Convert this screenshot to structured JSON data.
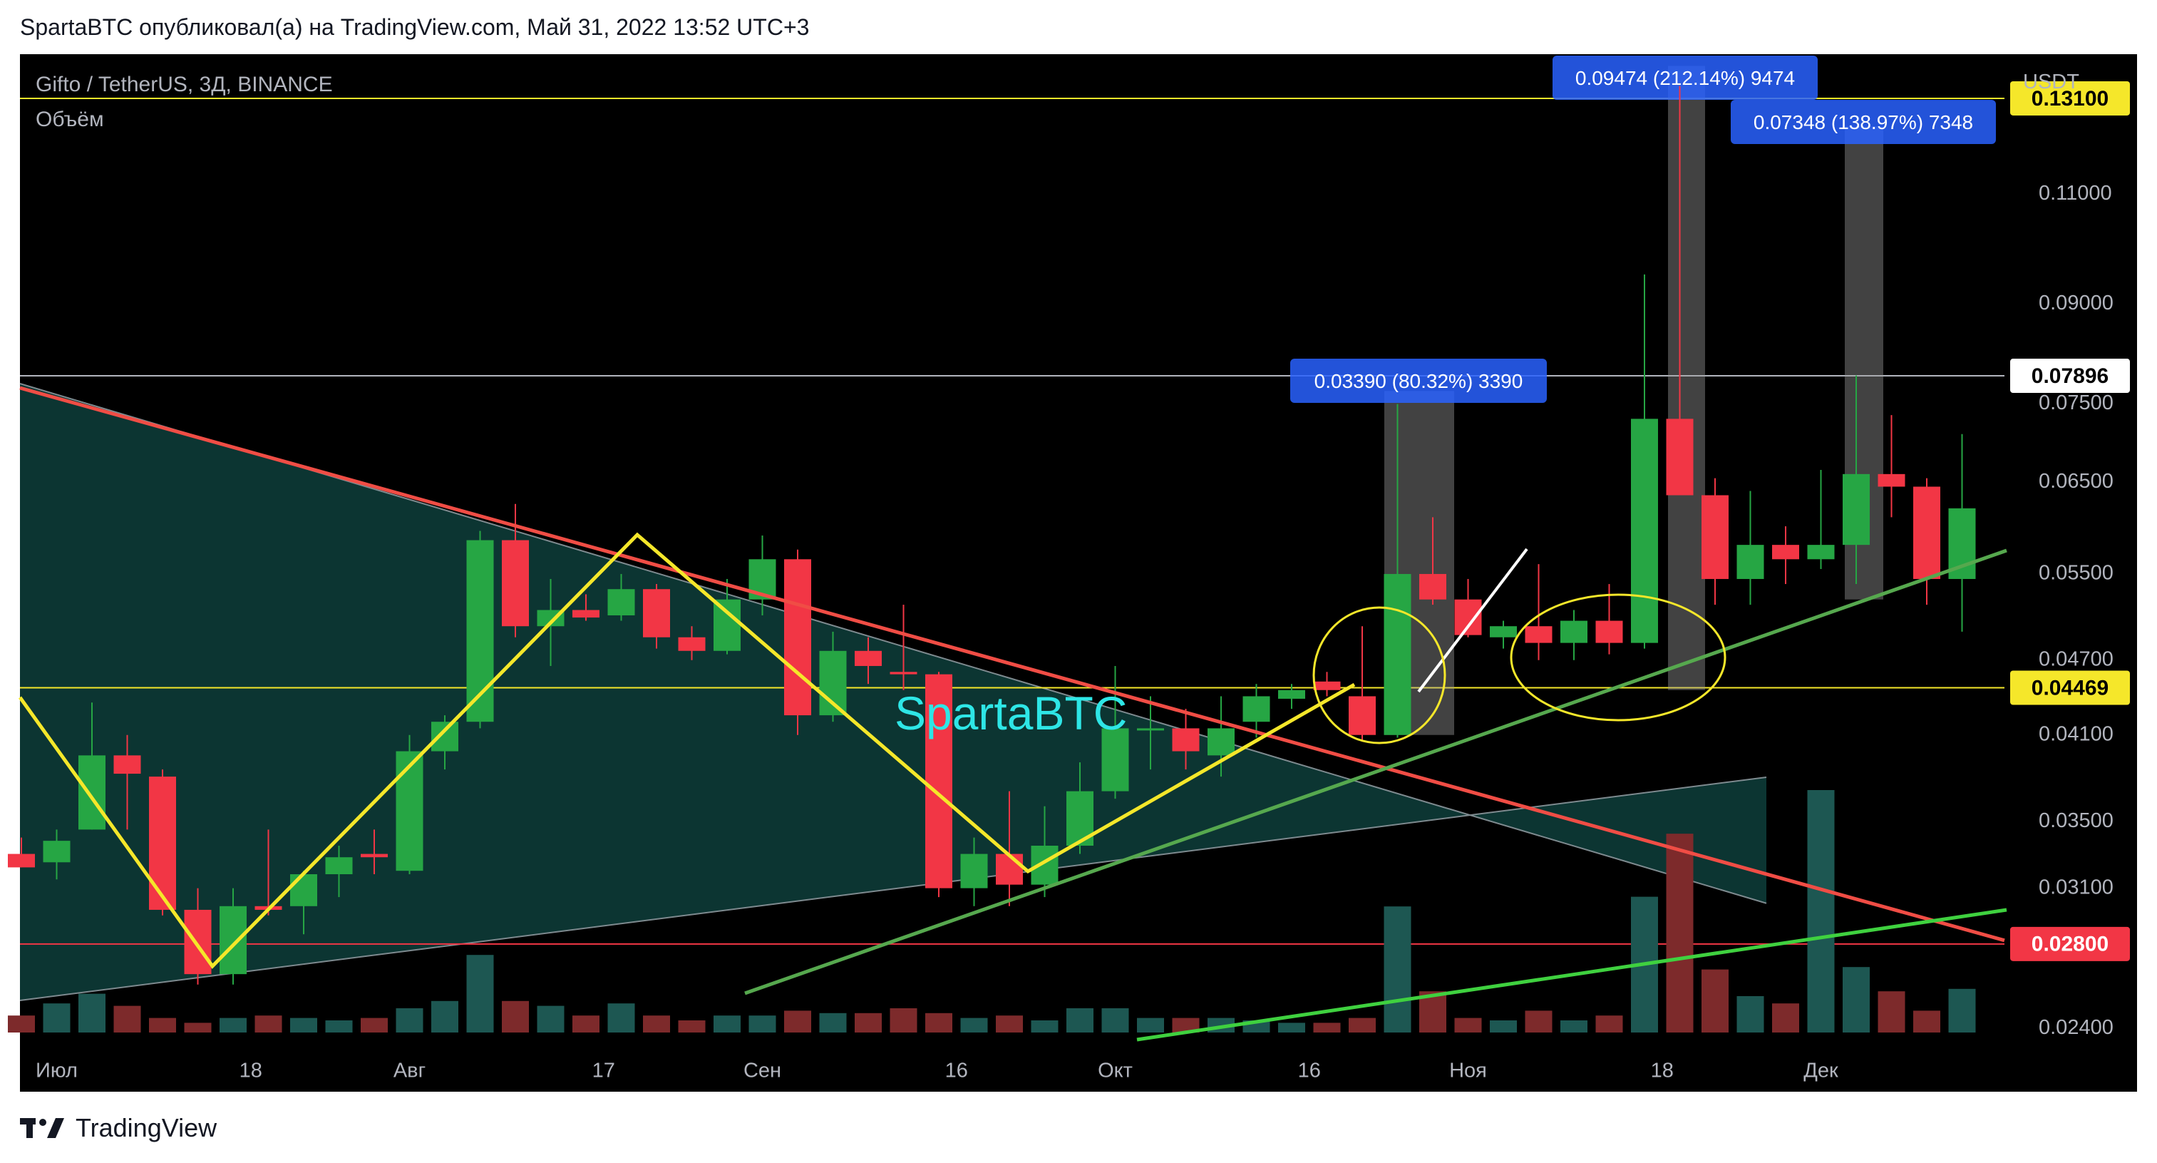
{
  "header": {
    "text": "SpartaBTC опубликовал(а) на TradingView.com, Май 31, 2022 13:52 UTC+3"
  },
  "footer": {
    "brand": "TradingView"
  },
  "legend": {
    "symbol": "Gifto / TetherUS, 3Д, BINANCE",
    "volume_label": "Объём"
  },
  "watermark": "SpartaBTC",
  "colors": {
    "background": "#000000",
    "bull": "#26a644",
    "bear": "#f23645",
    "vol_bull": "#1d5752",
    "vol_bear": "#7d2a2b",
    "triangle_fill": "#0d3b37",
    "yellow": "#f5e72a",
    "red_line": "#f04d45",
    "green_line": "#4caf50",
    "measure_blue": "#2962ff"
  },
  "chart_data": {
    "type": "candlestick",
    "currency": "USDT",
    "ylim": [
      0.023,
      0.142
    ],
    "x_ticks": [
      "Июл",
      "18",
      "Авг",
      "17",
      "Сен",
      "16",
      "Окт",
      "16",
      "Ноя",
      "18",
      "Дек"
    ],
    "x_tick_positions": [
      1.0,
      6.5,
      11.0,
      16.5,
      21.0,
      26.5,
      31.0,
      36.5,
      41.0,
      46.5,
      51.0
    ],
    "y_ticks": [
      0.024,
      0.031,
      0.035,
      0.041,
      0.047,
      0.055,
      0.065,
      0.075,
      0.09,
      0.11
    ],
    "y_tick_labels": [
      "0.02400",
      "0.03100",
      "0.03500",
      "0.04100",
      "0.04700",
      "0.05500",
      "0.06500",
      "0.07500",
      "0.09000",
      "0.11000"
    ],
    "price_tags": [
      {
        "label": "0.13100",
        "value": 0.131,
        "bg": "#f5e72a",
        "fg": "#000000"
      },
      {
        "label": "0.07896",
        "value": 0.07896,
        "bg": "#ffffff",
        "fg": "#000000"
      },
      {
        "label": "0.04469",
        "value": 0.04469,
        "bg": "#f5e72a",
        "fg": "#000000"
      },
      {
        "label": "0.02800",
        "value": 0.028,
        "bg": "#f23645",
        "fg": "#ffffff"
      }
    ],
    "measure_labels": [
      "0.03390 (80.32%) 3390",
      "0.09474 (212.14%) 9474",
      "0.07348 (138.97%) 7348"
    ],
    "candles": [
      {
        "o": 0.033,
        "h": 0.034,
        "l": 0.0322,
        "c": 0.0322
      },
      {
        "o": 0.0325,
        "h": 0.0345,
        "l": 0.0315,
        "c": 0.0338
      },
      {
        "o": 0.0345,
        "h": 0.0435,
        "l": 0.0345,
        "c": 0.0395
      },
      {
        "o": 0.0395,
        "h": 0.041,
        "l": 0.0345,
        "c": 0.0382
      },
      {
        "o": 0.038,
        "h": 0.0385,
        "l": 0.0295,
        "c": 0.0298
      },
      {
        "o": 0.0298,
        "h": 0.031,
        "l": 0.026,
        "c": 0.0265
      },
      {
        "o": 0.0265,
        "h": 0.031,
        "l": 0.026,
        "c": 0.03
      },
      {
        "o": 0.03,
        "h": 0.0345,
        "l": 0.0295,
        "c": 0.0298
      },
      {
        "o": 0.03,
        "h": 0.032,
        "l": 0.0285,
        "c": 0.0318
      },
      {
        "o": 0.0318,
        "h": 0.0335,
        "l": 0.0305,
        "c": 0.0328
      },
      {
        "o": 0.033,
        "h": 0.0345,
        "l": 0.0318,
        "c": 0.0328
      },
      {
        "o": 0.032,
        "h": 0.041,
        "l": 0.0318,
        "c": 0.0398
      },
      {
        "o": 0.0398,
        "h": 0.0425,
        "l": 0.0385,
        "c": 0.042
      },
      {
        "o": 0.042,
        "h": 0.0595,
        "l": 0.0415,
        "c": 0.0585
      },
      {
        "o": 0.0585,
        "h": 0.0625,
        "l": 0.049,
        "c": 0.05
      },
      {
        "o": 0.05,
        "h": 0.0545,
        "l": 0.0465,
        "c": 0.0515
      },
      {
        "o": 0.0515,
        "h": 0.053,
        "l": 0.0505,
        "c": 0.0508
      },
      {
        "o": 0.051,
        "h": 0.055,
        "l": 0.0505,
        "c": 0.0535
      },
      {
        "o": 0.0535,
        "h": 0.054,
        "l": 0.048,
        "c": 0.049
      },
      {
        "o": 0.049,
        "h": 0.05,
        "l": 0.047,
        "c": 0.0478
      },
      {
        "o": 0.0478,
        "h": 0.0545,
        "l": 0.0475,
        "c": 0.0525
      },
      {
        "o": 0.0525,
        "h": 0.059,
        "l": 0.051,
        "c": 0.0565
      },
      {
        "o": 0.0565,
        "h": 0.0575,
        "l": 0.041,
        "c": 0.0425
      },
      {
        "o": 0.0425,
        "h": 0.0495,
        "l": 0.042,
        "c": 0.0478
      },
      {
        "o": 0.0478,
        "h": 0.049,
        "l": 0.045,
        "c": 0.0465
      },
      {
        "o": 0.046,
        "h": 0.052,
        "l": 0.0445,
        "c": 0.0458
      },
      {
        "o": 0.0458,
        "h": 0.046,
        "l": 0.0305,
        "c": 0.031
      },
      {
        "o": 0.031,
        "h": 0.034,
        "l": 0.03,
        "c": 0.033
      },
      {
        "o": 0.033,
        "h": 0.037,
        "l": 0.03,
        "c": 0.0312
      },
      {
        "o": 0.0312,
        "h": 0.036,
        "l": 0.0305,
        "c": 0.0335
      },
      {
        "o": 0.0335,
        "h": 0.039,
        "l": 0.033,
        "c": 0.037
      },
      {
        "o": 0.037,
        "h": 0.0465,
        "l": 0.0365,
        "c": 0.0415
      },
      {
        "o": 0.0415,
        "h": 0.044,
        "l": 0.0385,
        "c": 0.0415
      },
      {
        "o": 0.0415,
        "h": 0.043,
        "l": 0.0385,
        "c": 0.0398
      },
      {
        "o": 0.0395,
        "h": 0.044,
        "l": 0.038,
        "c": 0.0415
      },
      {
        "o": 0.042,
        "h": 0.045,
        "l": 0.0408,
        "c": 0.044
      },
      {
        "o": 0.0438,
        "h": 0.045,
        "l": 0.043,
        "c": 0.0445
      },
      {
        "o": 0.0452,
        "h": 0.046,
        "l": 0.044,
        "c": 0.0445
      },
      {
        "o": 0.044,
        "h": 0.05,
        "l": 0.0405,
        "c": 0.041
      },
      {
        "o": 0.041,
        "h": 0.075,
        "l": 0.0408,
        "c": 0.055
      },
      {
        "o": 0.055,
        "h": 0.061,
        "l": 0.052,
        "c": 0.0525
      },
      {
        "o": 0.0525,
        "h": 0.0545,
        "l": 0.049,
        "c": 0.0492
      },
      {
        "o": 0.049,
        "h": 0.0505,
        "l": 0.048,
        "c": 0.05
      },
      {
        "o": 0.05,
        "h": 0.056,
        "l": 0.047,
        "c": 0.0485
      },
      {
        "o": 0.0485,
        "h": 0.0515,
        "l": 0.047,
        "c": 0.0505
      },
      {
        "o": 0.0505,
        "h": 0.054,
        "l": 0.0475,
        "c": 0.0485
      },
      {
        "o": 0.0485,
        "h": 0.095,
        "l": 0.048,
        "c": 0.073
      },
      {
        "o": 0.073,
        "h": 0.134,
        "l": 0.0635,
        "c": 0.0635
      },
      {
        "o": 0.0635,
        "h": 0.0655,
        "l": 0.052,
        "c": 0.0545
      },
      {
        "o": 0.0545,
        "h": 0.064,
        "l": 0.052,
        "c": 0.058
      },
      {
        "o": 0.058,
        "h": 0.06,
        "l": 0.054,
        "c": 0.0565
      },
      {
        "o": 0.0565,
        "h": 0.0665,
        "l": 0.0555,
        "c": 0.058
      },
      {
        "o": 0.058,
        "h": 0.079,
        "l": 0.054,
        "c": 0.066
      },
      {
        "o": 0.066,
        "h": 0.0735,
        "l": 0.061,
        "c": 0.0645
      },
      {
        "o": 0.0645,
        "h": 0.0655,
        "l": 0.052,
        "c": 0.0545
      },
      {
        "o": 0.0545,
        "h": 0.071,
        "l": 0.0495,
        "c": 0.062
      }
    ],
    "volume_relative": [
      0.07,
      0.12,
      0.16,
      0.11,
      0.06,
      0.04,
      0.06,
      0.07,
      0.06,
      0.05,
      0.06,
      0.1,
      0.13,
      0.32,
      0.13,
      0.11,
      0.07,
      0.12,
      0.07,
      0.05,
      0.07,
      0.07,
      0.09,
      0.08,
      0.08,
      0.1,
      0.08,
      0.06,
      0.07,
      0.05,
      0.1,
      0.1,
      0.06,
      0.06,
      0.06,
      0.05,
      0.04,
      0.04,
      0.06,
      0.52,
      0.17,
      0.06,
      0.05,
      0.09,
      0.05,
      0.07,
      0.56,
      0.82,
      0.26,
      0.15,
      0.12,
      1.0,
      0.27,
      0.17,
      0.09,
      0.18
    ]
  }
}
